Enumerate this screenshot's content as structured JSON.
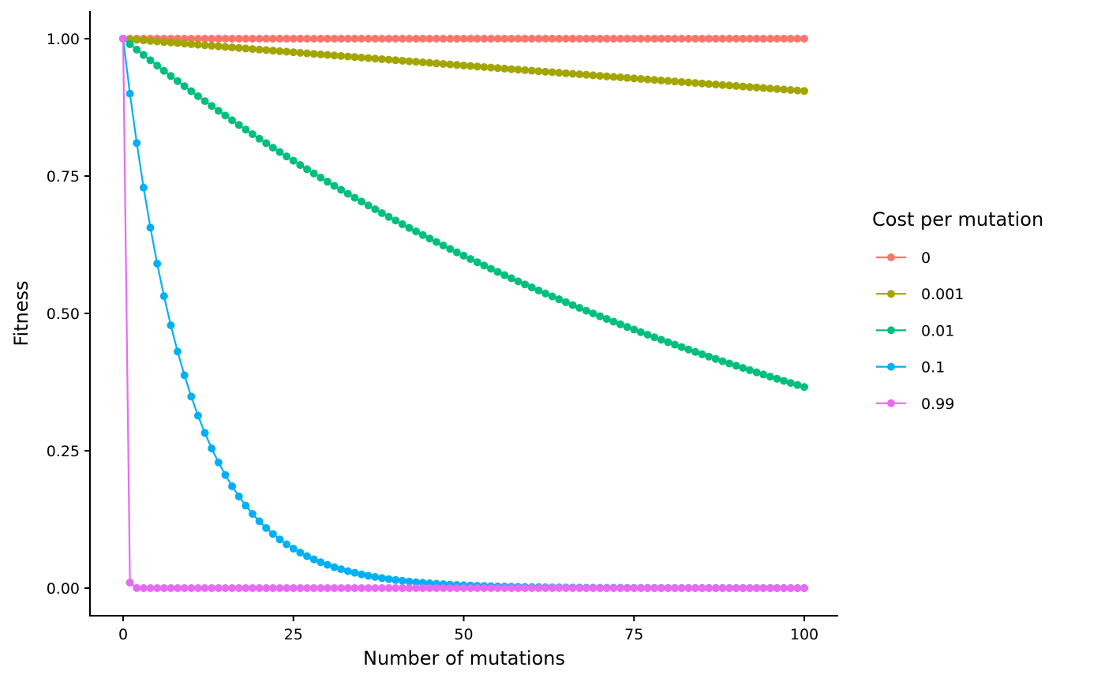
{
  "chart_data": {
    "type": "line",
    "title": "",
    "xlabel": "Number of mutations",
    "ylabel": "Fitness",
    "xlim": [
      0,
      100
    ],
    "ylim": [
      0,
      1
    ],
    "x": {
      "from": 0,
      "to": 100,
      "step": 1
    },
    "y_formula": "(1 - cost)^x",
    "xticks": [
      0,
      25,
      50,
      75,
      100
    ],
    "xtick_labels": [
      "0",
      "25",
      "50",
      "75",
      "100"
    ],
    "yticks": [
      0,
      0.25,
      0.5,
      0.75,
      1
    ],
    "ytick_labels": [
      "0.00",
      "0.25",
      "0.50",
      "0.75",
      "1.00"
    ],
    "grid": false,
    "legend": {
      "title": "Cost per mutation",
      "placement": "right"
    },
    "series": [
      {
        "name": "0",
        "cost": 0,
        "color": "#F8766D"
      },
      {
        "name": "0.001",
        "cost": 0.001,
        "color": "#A3A500"
      },
      {
        "name": "0.01",
        "cost": 0.01,
        "color": "#00BF7D"
      },
      {
        "name": "0.1",
        "cost": 0.1,
        "color": "#00B0F6"
      },
      {
        "name": "0.99",
        "cost": 0.99,
        "color": "#E76BF3"
      }
    ]
  }
}
